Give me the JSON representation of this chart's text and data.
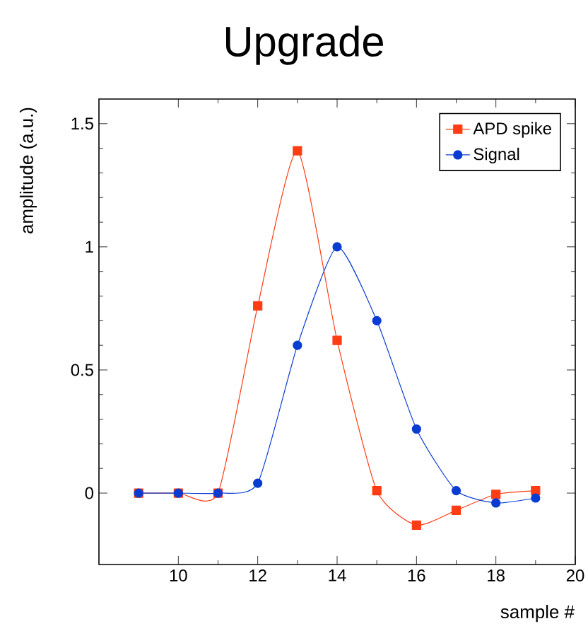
{
  "chart_data": {
    "type": "line",
    "title": "Upgrade",
    "xlabel": "sample #",
    "ylabel": "amplitude (a.u.)",
    "x": [
      9,
      10,
      11,
      12,
      13,
      14,
      15,
      16,
      17,
      18,
      19
    ],
    "series": [
      {
        "name": "APD spike",
        "color": "#ff3c14",
        "marker": "square",
        "values": [
          0,
          0,
          0,
          0.76,
          1.39,
          0.62,
          0.01,
          -0.13,
          -0.07,
          -0.005,
          0.01
        ]
      },
      {
        "name": "Signal",
        "color": "#0a3cd2",
        "marker": "circle",
        "values": [
          0,
          0,
          0,
          0.04,
          0.6,
          1.0,
          0.7,
          0.26,
          0.01,
          -0.04,
          -0.02
        ]
      }
    ],
    "xlim": [
      8,
      20
    ],
    "ylim": [
      -0.29,
      1.6
    ],
    "xticks": [
      10,
      12,
      14,
      16,
      18,
      20
    ],
    "yticks": [
      0,
      0.5,
      1,
      1.5
    ],
    "grid": false,
    "legend": "top right",
    "line_style": "solid"
  }
}
